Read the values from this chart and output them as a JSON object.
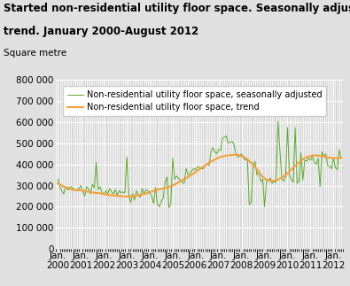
{
  "title_line1": "Started non-residential utility floor space. Seasonally adjusted and",
  "title_line2": "trend. January 2000-August 2012",
  "ylabel": "Square metre",
  "ylim": [
    0,
    800000
  ],
  "yticks": [
    0,
    100000,
    200000,
    300000,
    400000,
    500000,
    600000,
    700000,
    800000
  ],
  "ytick_labels": [
    "0",
    "100 000",
    "200 000",
    "300 000",
    "400 000",
    "500 000",
    "600 000",
    "700 000",
    "800 000"
  ],
  "xtick_labels": [
    "Jan.\n2000",
    "Jan.\n2001",
    "Jan.\n2002",
    "Jan.\n2003",
    "Jan.\n2004",
    "Jan.\n2005",
    "Jan.\n2006",
    "Jan.\n2007",
    "Jan.\n2008",
    "Jan.\n2009",
    "Jan.\n2010",
    "Jan.\n2011",
    "Jan.\n2012"
  ],
  "trend_color": "#f5a03a",
  "sa_color": "#5aaa28",
  "legend_entries": [
    "Non-residential utility floor space, trend",
    "Non-residential utility floor space, seasonally adjusted"
  ],
  "background_color": "#e0e0e0",
  "plot_bg_color": "#d8d8d8",
  "grid_color": "#ffffff",
  "title_fontsize": 8.5,
  "ylabel_fontsize": 7.5,
  "tick_fontsize": 7.5,
  "legend_fontsize": 7.0,
  "trend_values": [
    310000,
    305000,
    300000,
    295000,
    292000,
    290000,
    285000,
    282000,
    280000,
    278000,
    278000,
    278000,
    278000,
    276000,
    274000,
    272000,
    270000,
    268000,
    267000,
    266000,
    265000,
    264000,
    263000,
    262000,
    260000,
    258000,
    256000,
    255000,
    254000,
    253000,
    252000,
    251000,
    250000,
    250000,
    249000,
    248000,
    248000,
    248000,
    248000,
    249000,
    250000,
    252000,
    254000,
    256000,
    258000,
    260000,
    262000,
    265000,
    268000,
    272000,
    275000,
    278000,
    280000,
    282000,
    284000,
    286000,
    288000,
    290000,
    293000,
    296000,
    300000,
    305000,
    310000,
    315000,
    320000,
    325000,
    330000,
    335000,
    340000,
    346000,
    352000,
    358000,
    365000,
    372000,
    378000,
    384000,
    390000,
    396000,
    402000,
    408000,
    413000,
    418000,
    423000,
    428000,
    432000,
    435000,
    438000,
    440000,
    442000,
    443000,
    444000,
    445000,
    446000,
    446000,
    445000,
    443000,
    440000,
    436000,
    430000,
    424000,
    416000,
    408000,
    398000,
    388000,
    376000,
    364000,
    352000,
    342000,
    334000,
    328000,
    324000,
    322000,
    322000,
    323000,
    325000,
    328000,
    332000,
    337000,
    343000,
    350000,
    358000,
    367000,
    376000,
    385000,
    394000,
    402000,
    410000,
    418000,
    424000,
    430000,
    434000,
    437000,
    440000,
    442000,
    443000,
    443000,
    442000,
    441000,
    439000,
    437000,
    435000,
    433000,
    432000,
    431000,
    430000,
    430000,
    430000,
    430000,
    432000
  ],
  "sa_values": [
    330000,
    295000,
    275000,
    260000,
    295000,
    280000,
    290000,
    295000,
    285000,
    275000,
    280000,
    285000,
    300000,
    270000,
    250000,
    295000,
    285000,
    260000,
    305000,
    290000,
    410000,
    280000,
    295000,
    270000,
    255000,
    275000,
    260000,
    285000,
    270000,
    260000,
    280000,
    255000,
    275000,
    265000,
    270000,
    265000,
    435000,
    255000,
    220000,
    260000,
    230000,
    275000,
    255000,
    245000,
    285000,
    260000,
    280000,
    275000,
    265000,
    250000,
    215000,
    290000,
    210000,
    200000,
    225000,
    240000,
    315000,
    340000,
    195000,
    215000,
    430000,
    330000,
    345000,
    335000,
    325000,
    315000,
    310000,
    380000,
    350000,
    360000,
    370000,
    380000,
    375000,
    390000,
    385000,
    380000,
    380000,
    395000,
    405000,
    395000,
    460000,
    480000,
    460000,
    450000,
    470000,
    465000,
    525000,
    530000,
    535000,
    500000,
    505000,
    510000,
    495000,
    450000,
    435000,
    440000,
    450000,
    430000,
    420000,
    430000,
    210000,
    220000,
    390000,
    415000,
    350000,
    370000,
    320000,
    330000,
    200000,
    320000,
    325000,
    335000,
    310000,
    320000,
    315000,
    605000,
    470000,
    335000,
    320000,
    340000,
    575000,
    350000,
    330000,
    315000,
    575000,
    310000,
    320000,
    455000,
    325000,
    420000,
    415000,
    430000,
    420000,
    440000,
    410000,
    400000,
    430000,
    295000,
    460000,
    435000,
    450000,
    395000,
    390000,
    380000,
    430000,
    385000,
    375000,
    470000,
    430000
  ]
}
